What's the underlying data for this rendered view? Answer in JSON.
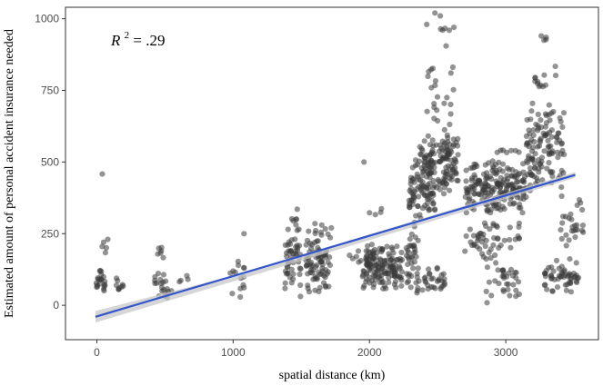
{
  "chart_data": {
    "type": "scatter",
    "title": "",
    "xlabel": "spatial distance (km)",
    "ylabel": "Estimated amount of personal accident insurance needed",
    "xlim": [
      -230,
      3680
    ],
    "ylim": [
      -120,
      1040
    ],
    "xticks": [
      0,
      1000,
      2000,
      3000
    ],
    "yticks": [
      0,
      250,
      500,
      750,
      1000
    ],
    "grid": false,
    "legend": "none",
    "annotation": {
      "r_symbol": "R",
      "r_power": "2",
      "r_value": "= .29"
    },
    "point_color": "#3a3a3a",
    "line_color": "#3355cc",
    "band_color": "#c8c8c8",
    "fit_line": {
      "x": [
        -10,
        3510
      ],
      "y": [
        -40,
        455
      ]
    },
    "confidence_band": {
      "x": [
        -10,
        1000,
        3510
      ],
      "upper": [
        -20,
        103,
        465
      ],
      "lower": [
        -60,
        83,
        445
      ]
    },
    "clusters": [
      {
        "x": [
          -20,
          60
        ],
        "y": [
          40,
          150
        ],
        "n": 22
      },
      {
        "x": [
          30,
          70
        ],
        "y": [
          160,
          240
        ],
        "n": 4
      },
      {
        "x": [
          120,
          220
        ],
        "y": [
          30,
          110
        ],
        "n": 9
      },
      {
        "x": [
          420,
          560
        ],
        "y": [
          10,
          130
        ],
        "n": 20
      },
      {
        "x": [
          430,
          560
        ],
        "y": [
          140,
          220
        ],
        "n": 6
      },
      {
        "x": [
          580,
          680
        ],
        "y": [
          70,
          110
        ],
        "n": 4
      },
      {
        "x": [
          960,
          1080
        ],
        "y": [
          10,
          200
        ],
        "n": 14
      },
      {
        "x": [
          1380,
          1500
        ],
        "y": [
          20,
          350
        ],
        "n": 55
      },
      {
        "x": [
          1530,
          1720
        ],
        "y": [
          20,
          290
        ],
        "n": 85
      },
      {
        "x": [
          1850,
          1950
        ],
        "y": [
          130,
          200
        ],
        "n": 6
      },
      {
        "x": [
          1950,
          2240
        ],
        "y": [
          30,
          230
        ],
        "n": 150
      },
      {
        "x": [
          2000,
          2100
        ],
        "y": [
          300,
          340
        ],
        "n": 4
      },
      {
        "x": [
          2270,
          2360
        ],
        "y": [
          20,
          300
        ],
        "n": 35
      },
      {
        "x": [
          2290,
          2480
        ],
        "y": [
          260,
          540
        ],
        "n": 75
      },
      {
        "x": [
          2340,
          2560
        ],
        "y": [
          40,
          140
        ],
        "n": 35
      },
      {
        "x": [
          2350,
          2650
        ],
        "y": [
          380,
          620
        ],
        "n": 140
      },
      {
        "x": [
          2400,
          2620
        ],
        "y": [
          620,
          860
        ],
        "n": 22
      },
      {
        "x": [
          2500,
          2650
        ],
        "y": [
          900,
          1000
        ],
        "n": 5
      },
      {
        "x": [
          2700,
          3150
        ],
        "y": [
          300,
          520
        ],
        "n": 200
      },
      {
        "x": [
          2700,
          3100
        ],
        "y": [
          160,
          300
        ],
        "n": 50
      },
      {
        "x": [
          2850,
          3100
        ],
        "y": [
          0,
          170
        ],
        "n": 35
      },
      {
        "x": [
          2900,
          3100
        ],
        "y": [
          520,
          560
        ],
        "n": 6
      },
      {
        "x": [
          3150,
          3430
        ],
        "y": [
          370,
          720
        ],
        "n": 120
      },
      {
        "x": [
          3200,
          3400
        ],
        "y": [
          720,
          850
        ],
        "n": 12
      },
      {
        "x": [
          3250,
          3320
        ],
        "y": [
          900,
          940
        ],
        "n": 2
      },
      {
        "x": [
          3280,
          3550
        ],
        "y": [
          30,
          170
        ],
        "n": 55
      },
      {
        "x": [
          3400,
          3570
        ],
        "y": [
          170,
          430
        ],
        "n": 25
      }
    ],
    "points": [
      [
        40,
        458
      ],
      [
        2480,
        1020
      ],
      [
        2520,
        1010
      ],
      [
        2620,
        970
      ],
      [
        3260,
        940
      ],
      [
        3280,
        925
      ],
      [
        2420,
        980
      ],
      [
        3150,
        410
      ],
      [
        3420,
        310
      ],
      [
        3500,
        260
      ],
      [
        1470,
        335
      ],
      [
        1960,
        500
      ],
      [
        1600,
        285
      ],
      [
        1650,
        280
      ],
      [
        1720,
        270
      ],
      [
        80,
        230
      ],
      [
        1080,
        250
      ],
      [
        3040,
        540
      ]
    ]
  }
}
